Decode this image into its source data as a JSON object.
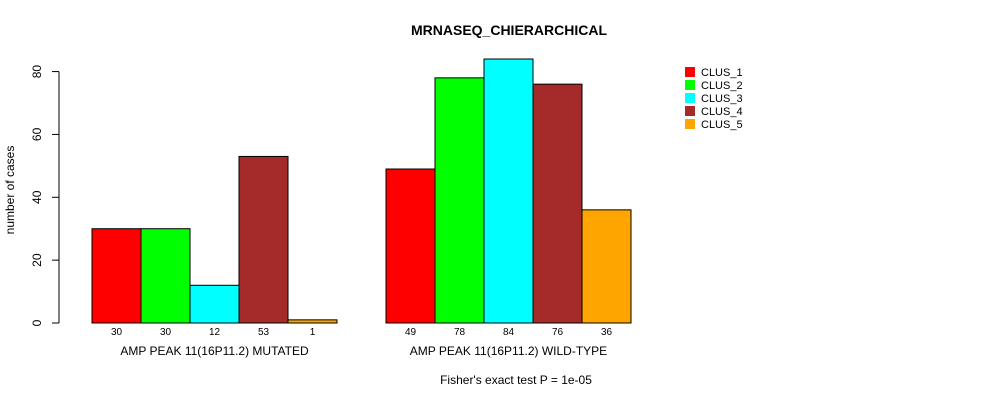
{
  "chart_data": {
    "type": "bar",
    "title": "MRNASEQ_CHIERARCHICAL",
    "ylabel": "number of cases",
    "xlabel": "",
    "ylim": [
      0,
      84
    ],
    "yticks": [
      0,
      20,
      40,
      60,
      80
    ],
    "grid": false,
    "legend_position": "top-right",
    "groups": [
      {
        "label": "AMP PEAK 11(16P11.2) MUTATED",
        "values": [
          30,
          30,
          12,
          53,
          1
        ],
        "count_labels": [
          "30",
          "30",
          "12",
          "53",
          "1"
        ]
      },
      {
        "label": "AMP PEAK 11(16P11.2) WILD-TYPE",
        "values": [
          49,
          78,
          84,
          76,
          36
        ],
        "count_labels": [
          "49",
          "78",
          "84",
          "76",
          "36"
        ]
      }
    ],
    "series": [
      {
        "name": "CLUS_1",
        "color": "#ff0000"
      },
      {
        "name": "CLUS_2",
        "color": "#00ff00"
      },
      {
        "name": "CLUS_3",
        "color": "#00ffff"
      },
      {
        "name": "CLUS_4",
        "color": "#a52a2a"
      },
      {
        "name": "CLUS_5",
        "color": "#ffa500"
      }
    ],
    "footnote": "Fisher's exact test P = 1e-05"
  }
}
